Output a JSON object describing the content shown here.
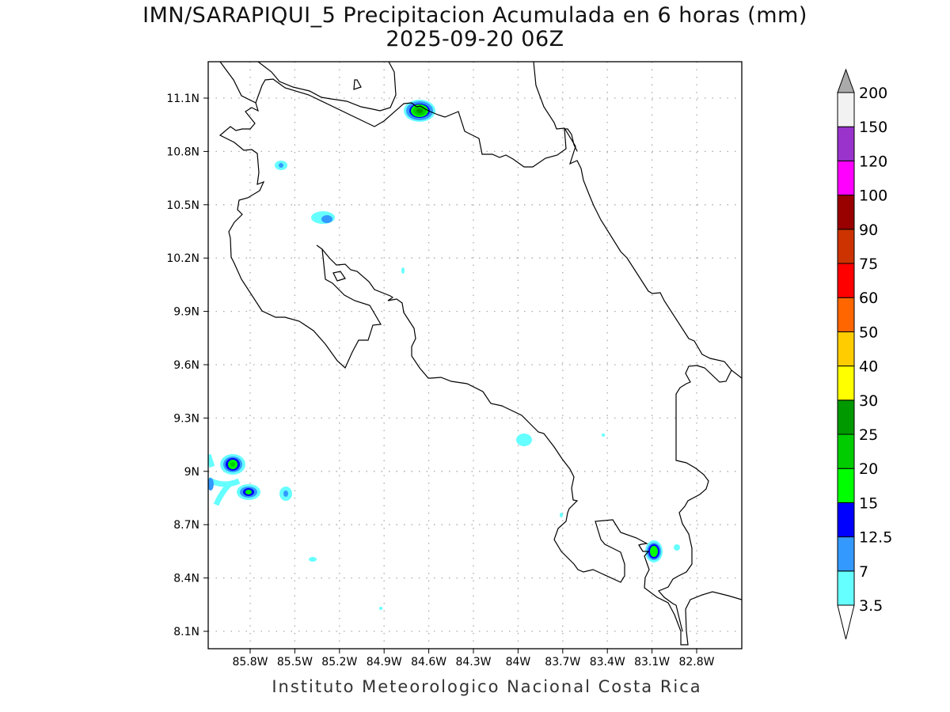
{
  "title": {
    "line1": "IMN/SARAPIQUI_5 Precipitacion Acumulada en 6 horas (mm)",
    "line2": "2025-09-20 06Z"
  },
  "footer": "Instituto Meteorologico Nacional Costa Rica",
  "map": {
    "lon_ticks": [
      "85.8W",
      "85.5W",
      "85.2W",
      "84.9W",
      "84.6W",
      "84.3W",
      "84W",
      "83.7W",
      "83.4W",
      "83.1W",
      "82.8W"
    ],
    "lat_ticks": [
      "11.1N",
      "10.8N",
      "10.5N",
      "10.2N",
      "9.9N",
      "9.6N",
      "9.3N",
      "9N",
      "8.7N",
      "8.4N",
      "8.1N"
    ],
    "variable": "6-hour accumulated precipitation (mm)"
  },
  "colorbar": {
    "labels": [
      "3.5",
      "7",
      "12.5",
      "15",
      "20",
      "25",
      "30",
      "40",
      "50",
      "60",
      "75",
      "90",
      "100",
      "120",
      "150",
      "200"
    ],
    "colors": [
      "#66ffff",
      "#3399ff",
      "#0000ff",
      "#00ff00",
      "#00cc00",
      "#009900",
      "#ffff00",
      "#ffcc00",
      "#ff6600",
      "#ff0000",
      "#cc3300",
      "#990000",
      "#ff00ff",
      "#9933cc",
      "#f2f2f2"
    ],
    "over_color": "#aaaaaa",
    "under_color": "#ffffff"
  }
}
